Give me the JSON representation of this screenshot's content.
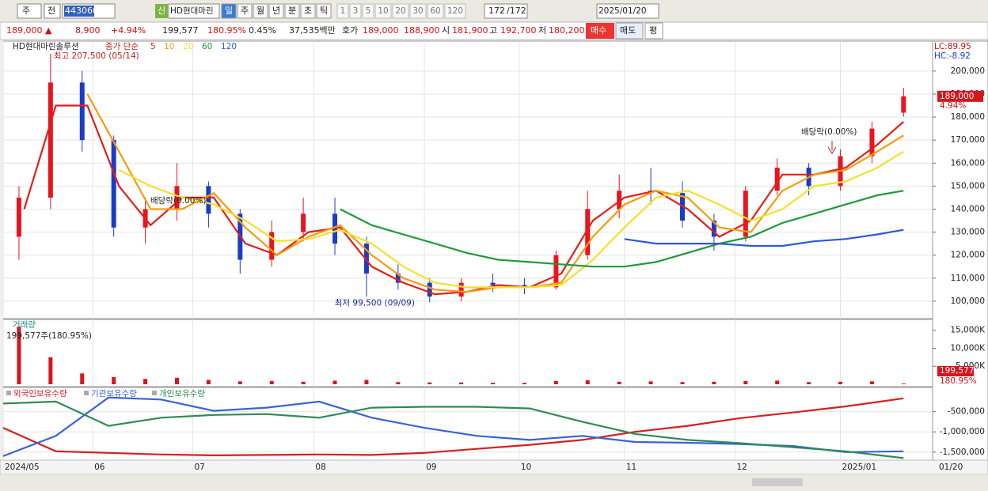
{
  "toolbar": {
    "period": "주",
    "prev": "전",
    "code": "443060",
    "badge": "신",
    "name": "HD현대마린",
    "intervals": [
      "일",
      "주",
      "월",
      "년",
      "분",
      "초",
      "틱"
    ],
    "counts": [
      "1",
      "3",
      "5",
      "10",
      "20",
      "30",
      "60",
      "120"
    ],
    "shown": "172",
    "total": "/172",
    "date": "2025/01/20"
  },
  "quote": {
    "price": "189,000 ▲",
    "change": "8,900",
    "rate": "+4.94%",
    "volume": "199,577",
    "volume_rate": "180.95%",
    "turnover": "0.45%",
    "amount": "37,535백만",
    "ask_label": "호가",
    "ask": "189,000",
    "bid": "188,900",
    "open_label": "시",
    "open": "181,900",
    "high_label": "고",
    "high": "192,700",
    "low_label": "저",
    "low": "180,200",
    "buy": "매수",
    "sell": "매도",
    "avg": "평"
  },
  "chart_data": [
    {
      "type": "candlestick",
      "title": "HD현대마린솔루션",
      "legend_title": "종가 단순",
      "xlim": [
        0,
        172
      ],
      "ylim": [
        92400,
        213000
      ],
      "yticks": [
        {
          "value": 100000,
          "label": "100,000"
        },
        {
          "value": 110000,
          "label": "110,000"
        },
        {
          "value": 120000,
          "label": "120,000"
        },
        {
          "value": 130000,
          "label": "130,000"
        },
        {
          "value": 140000,
          "label": "140,000"
        },
        {
          "value": 150000,
          "label": "150,000"
        },
        {
          "value": 160000,
          "label": "160,000"
        },
        {
          "value": 170000,
          "label": "170,000"
        },
        {
          "value": 180000,
          "label": "180,000"
        },
        {
          "value": 190000,
          "label": "190,000"
        },
        {
          "value": 200000,
          "label": "200,000"
        }
      ],
      "xticks": [
        {
          "value": 0,
          "label": "2024/05"
        },
        {
          "value": 17,
          "label": "06"
        },
        {
          "value": 36,
          "label": "07"
        },
        {
          "value": 59,
          "label": "08"
        },
        {
          "value": 80,
          "label": "09"
        },
        {
          "value": 98,
          "label": "10"
        },
        {
          "value": 118,
          "label": "11"
        },
        {
          "value": 139,
          "label": "12"
        },
        {
          "value": 159,
          "label": "2025/01"
        }
      ],
      "last_date": "01/20",
      "lc": "LC:89.95",
      "hc": "HC:-8.92",
      "last_price": "189,000",
      "last_rate": "4.94%",
      "annotations": {
        "high": "최고 207,500 (05/14)",
        "low": "최저 99,500 (09/09)",
        "dividend1": "배당락(0.00%)",
        "dividend2": "배당락(0.00%)"
      },
      "x": [
        3,
        9,
        15,
        21,
        27,
        33,
        39,
        45,
        51,
        57,
        63,
        69,
        75,
        81,
        87,
        93,
        99,
        105,
        111,
        117,
        123,
        129,
        135,
        141,
        147,
        153,
        159,
        165,
        171
      ],
      "open": [
        128000,
        145000,
        195000,
        170000,
        132000,
        140000,
        150000,
        138000,
        118000,
        130000,
        138000,
        125000,
        112000,
        108000,
        102000,
        108000,
        107000,
        106000,
        120000,
        140000,
        148000,
        147000,
        135000,
        128000,
        148000,
        158000,
        150000,
        163000,
        181900
      ],
      "high": [
        150000,
        207500,
        200000,
        172000,
        145000,
        160000,
        152000,
        140000,
        135000,
        145000,
        145000,
        128000,
        116000,
        110000,
        110000,
        112000,
        110000,
        122000,
        148000,
        155000,
        158000,
        152000,
        138000,
        150000,
        162000,
        160000,
        166000,
        178000,
        192700
      ],
      "low": [
        118000,
        140000,
        165000,
        128000,
        125000,
        135000,
        132000,
        112000,
        115000,
        126000,
        120000,
        102000,
        105000,
        99500,
        100000,
        104000,
        103000,
        105000,
        118000,
        136000,
        142000,
        132000,
        122000,
        126000,
        146000,
        146000,
        148000,
        160000,
        180200
      ],
      "close": [
        145000,
        195000,
        170000,
        132000,
        140000,
        150000,
        138000,
        118000,
        130000,
        138000,
        125000,
        112000,
        108000,
        102000,
        108000,
        107000,
        106000,
        120000,
        140000,
        148000,
        147000,
        135000,
        128000,
        148000,
        158000,
        150000,
        163000,
        175000,
        189000
      ],
      "up_color": "#e8141e",
      "down_color": "#1a3cc8",
      "series": [
        {
          "name": "5",
          "color": "#e0201a",
          "x": [
            4,
            10,
            16,
            22,
            28,
            34,
            40,
            46,
            52,
            58,
            64,
            70,
            76,
            82,
            88,
            94,
            100,
            106,
            112,
            118,
            124,
            130,
            136,
            142,
            148,
            154,
            160,
            166,
            171
          ],
          "values": [
            140000,
            185000,
            185000,
            150000,
            133000,
            145000,
            145000,
            125000,
            120000,
            130000,
            132000,
            115000,
            108000,
            103000,
            104000,
            107000,
            106000,
            112000,
            135000,
            145000,
            148000,
            140000,
            128000,
            135000,
            155000,
            155000,
            158000,
            168000,
            178000
          ]
        },
        {
          "name": "10",
          "color": "#f39c12",
          "x": [
            16,
            22,
            28,
            34,
            40,
            46,
            52,
            58,
            64,
            70,
            76,
            82,
            88,
            94,
            100,
            106,
            112,
            118,
            124,
            130,
            136,
            142,
            148,
            154,
            160,
            166,
            171
          ],
          "values": [
            190000,
            165000,
            140000,
            140000,
            147000,
            132000,
            120000,
            128000,
            133000,
            120000,
            110000,
            105000,
            104000,
            106000,
            106000,
            108000,
            128000,
            142000,
            148000,
            145000,
            132000,
            130000,
            148000,
            155000,
            157000,
            165000,
            172000
          ]
        },
        {
          "name": "20",
          "color": "#f2e130",
          "x": [
            22,
            28,
            34,
            40,
            46,
            52,
            58,
            64,
            70,
            76,
            82,
            88,
            94,
            100,
            106,
            112,
            118,
            124,
            130,
            136,
            142,
            148,
            154,
            160,
            166,
            171
          ],
          "values": [
            157000,
            150000,
            145000,
            142000,
            135000,
            126000,
            127000,
            131000,
            125000,
            115000,
            108000,
            106000,
            106000,
            106000,
            107000,
            118000,
            132000,
            145000,
            148000,
            142000,
            135000,
            140000,
            150000,
            152000,
            158000,
            165000
          ]
        },
        {
          "name": "60",
          "color": "#1e9a3a",
          "x": [
            64,
            70,
            76,
            82,
            88,
            94,
            100,
            106,
            112,
            118,
            124,
            130,
            136,
            142,
            148,
            154,
            160,
            166,
            171
          ],
          "values": [
            140000,
            133000,
            129000,
            125000,
            121000,
            118000,
            117000,
            116000,
            115000,
            115000,
            117000,
            121000,
            125000,
            128000,
            134000,
            138000,
            142000,
            146000,
            148000
          ]
        },
        {
          "name": "120",
          "color": "#2a5bd8",
          "x": [
            118,
            124,
            130,
            136,
            142,
            148,
            154,
            160,
            166,
            171
          ],
          "values": [
            127000,
            125000,
            125000,
            125000,
            124000,
            124000,
            126000,
            127000,
            129000,
            131000
          ]
        }
      ]
    },
    {
      "type": "bar",
      "title": "거래량",
      "label": "199,577주(180.95%)",
      "color": "#d8141e",
      "xlim": [
        0,
        172
      ],
      "ylim": [
        0,
        18000
      ],
      "yticks": [
        {
          "value": 5000,
          "label": "5,000K"
        },
        {
          "value": 10000,
          "label": "10,000K"
        },
        {
          "value": 15000,
          "label": "15,000K"
        }
      ],
      "last_value": "199,577",
      "last_rate": "180.95%",
      "x": [
        3,
        9,
        15,
        21,
        27,
        33,
        39,
        45,
        51,
        57,
        63,
        69,
        75,
        81,
        87,
        93,
        99,
        105,
        111,
        117,
        123,
        129,
        135,
        141,
        147,
        153,
        159,
        165,
        171
      ],
      "values": [
        16000,
        7500,
        3000,
        2000,
        1500,
        1800,
        1200,
        800,
        900,
        700,
        1000,
        1200,
        600,
        500,
        500,
        400,
        400,
        900,
        1100,
        700,
        800,
        600,
        700,
        900,
        1000,
        600,
        700,
        800,
        199.577
      ]
    },
    {
      "type": "line",
      "xlim": [
        0,
        172
      ],
      "ylim": [
        -1700000,
        100000
      ],
      "yticks": [
        {
          "value": -500000,
          "label": "-500,000"
        },
        {
          "value": -1000000,
          "label": "-1,000,000"
        },
        {
          "value": -1500000,
          "label": "-1,500,000"
        }
      ],
      "x": [
        0,
        10,
        20,
        30,
        40,
        50,
        60,
        70,
        80,
        90,
        100,
        110,
        120,
        130,
        140,
        150,
        160,
        171
      ],
      "series": [
        {
          "name": "외국인보유수량",
          "color": "#d81e1e",
          "values": [
            -900000,
            -1480000,
            -1520000,
            -1560000,
            -1580000,
            -1570000,
            -1560000,
            -1570000,
            -1520000,
            -1420000,
            -1320000,
            -1200000,
            -1000000,
            -850000,
            -660000,
            -520000,
            -370000,
            -170000
          ]
        },
        {
          "name": "기관보유수량",
          "color": "#3a62d8",
          "values": [
            -1600000,
            -1100000,
            -150000,
            -200000,
            -480000,
            -400000,
            -250000,
            -650000,
            -900000,
            -1100000,
            -1200000,
            -1100000,
            -1250000,
            -1270000,
            -1300000,
            -1350000,
            -1500000,
            -1480000
          ]
        },
        {
          "name": "개인보유수량",
          "color": "#2e8b57",
          "values": [
            -300000,
            -250000,
            -850000,
            -650000,
            -580000,
            -560000,
            -650000,
            -400000,
            -380000,
            -380000,
            -420000,
            -750000,
            -1050000,
            -1200000,
            -1280000,
            -1380000,
            -1480000,
            -1650000
          ]
        }
      ]
    }
  ]
}
